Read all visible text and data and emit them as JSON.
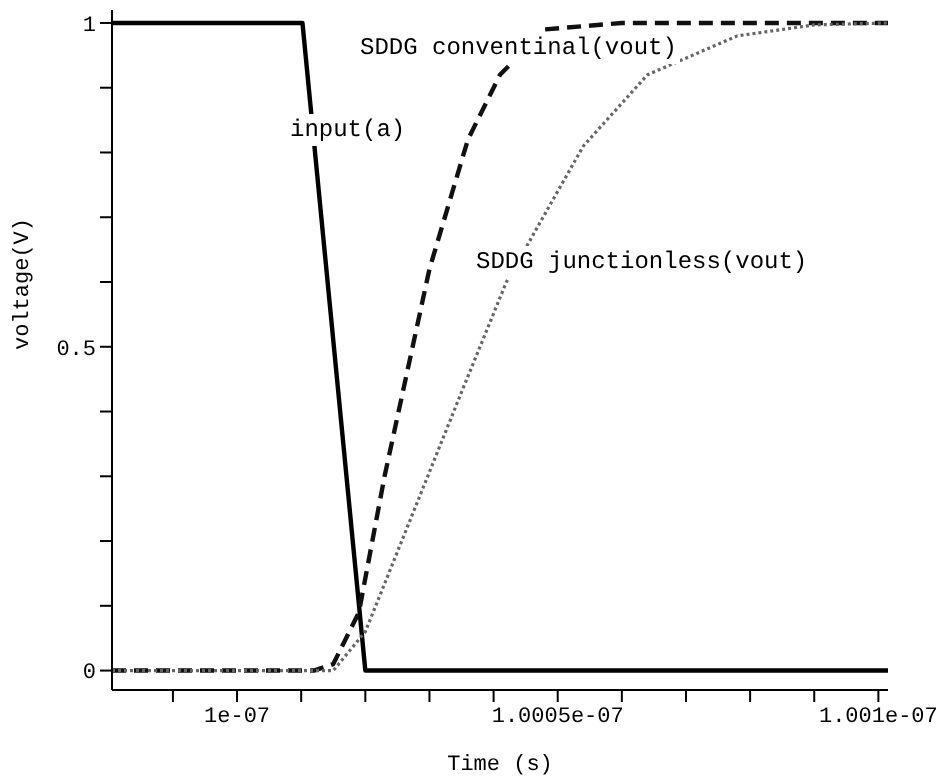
{
  "chart_data": {
    "type": "line",
    "xlabel": "Time (s)",
    "ylabel": "voltage(V)",
    "xlim": [
      9.99805e-08,
      1.001015e-07
    ],
    "ylim": [
      -0.03,
      1.02
    ],
    "xticks": [
      {
        "value": 9.999e-08,
        "label": null
      },
      {
        "value": 1e-07,
        "label": "1e-07"
      },
      {
        "value": 1.0001e-07,
        "label": null
      },
      {
        "value": 1.0002e-07,
        "label": null
      },
      {
        "value": 1.0003e-07,
        "label": null
      },
      {
        "value": 1.0004e-07,
        "label": null
      },
      {
        "value": 1.0005e-07,
        "label": "1.0005e-07"
      },
      {
        "value": 1.0006e-07,
        "label": null
      },
      {
        "value": 1.0007e-07,
        "label": null
      },
      {
        "value": 1.0008e-07,
        "label": null
      },
      {
        "value": 1.0009e-07,
        "label": null
      },
      {
        "value": 1.001e-07,
        "label": "1.001e-07"
      }
    ],
    "yticks": [
      0,
      {
        "value": 0.1,
        "label": null
      },
      {
        "value": 0.2,
        "label": null
      },
      {
        "value": 0.3,
        "label": null
      },
      {
        "value": 0.4,
        "label": null
      },
      0.5,
      {
        "value": 0.6,
        "label": null
      },
      {
        "value": 0.7,
        "label": null
      },
      {
        "value": 0.8,
        "label": null
      },
      {
        "value": 0.9,
        "label": null
      },
      1
    ],
    "grid": false,
    "legend": false,
    "marker": "none",
    "series": [
      {
        "name": "input(a)",
        "color": "#000000",
        "line_style": "solid",
        "x": [
          9.99805e-08,
          1.000102e-07,
          1.0002e-07,
          1.001015e-07
        ],
        "values": [
          1,
          1,
          0,
          0
        ]
      },
      {
        "name": "SDDG conventinal(vout)",
        "color": "#111111",
        "line_style": "dashed",
        "x": [
          9.99805e-08,
          1.00012e-07,
          1.00015e-07,
          1.00019e-07,
          1.00023e-07,
          1.000265e-07,
          1.0003e-07,
          1.00036e-07,
          1.00041e-07,
          1.00048e-07,
          1.0006e-07,
          1.001015e-07
        ],
        "values": [
          0,
          0,
          0.01,
          0.09,
          0.3,
          0.46,
          0.62,
          0.82,
          0.92,
          0.99,
          1,
          1
        ]
      },
      {
        "name": "SDDG junctionless(vout)",
        "color": "#666666",
        "line_style": "dotted",
        "x": [
          9.99805e-08,
          1.00015e-07,
          1.0002e-07,
          1.00035e-07,
          1.00042e-07,
          1.00054e-07,
          1.00064e-07,
          1.00078e-07,
          1.0009e-07,
          1.001015e-07
        ],
        "values": [
          0,
          0,
          0.06,
          0.43,
          0.6,
          0.81,
          0.92,
          0.98,
          0.997,
          1
        ]
      }
    ]
  }
}
